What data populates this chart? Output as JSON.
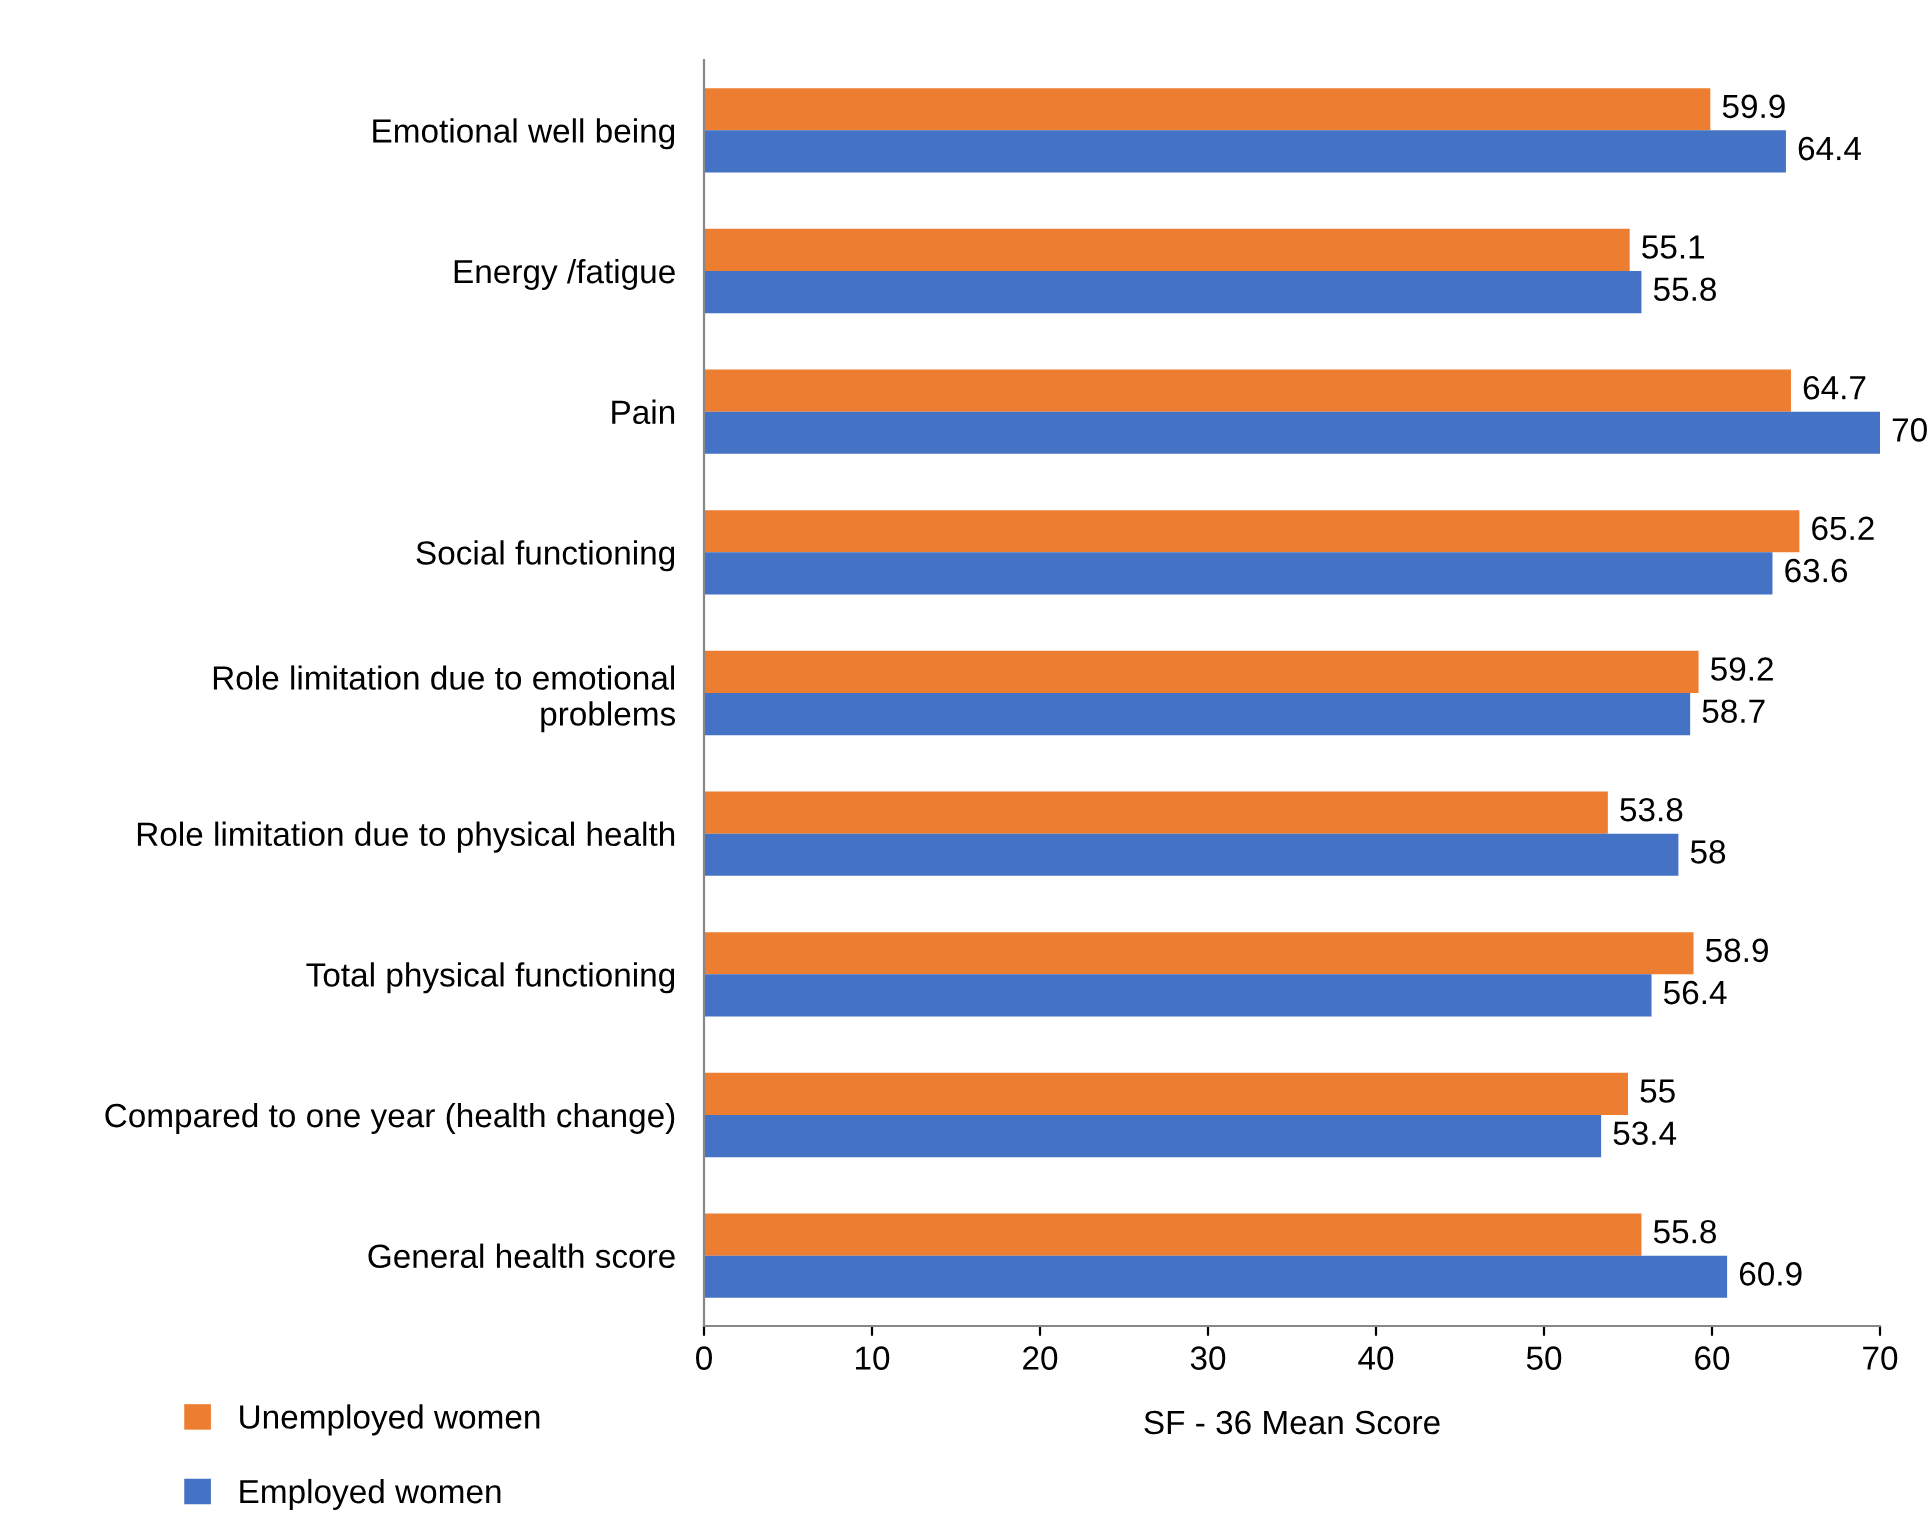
{
  "chart_data": {
    "type": "bar",
    "orientation": "horizontal",
    "xlabel": "SF - 36 Mean Score",
    "categories": [
      "Emotional well being",
      "Energy /fatigue",
      "Pain",
      "Social functioning",
      "Role limitation due to emotional\nproblems",
      "Role limitation due to physical health",
      "Total physical functioning",
      "Compared to one year (health change)",
      "General health score"
    ],
    "series": [
      {
        "name": "Unemployed women",
        "color": "#ed7d31",
        "values": [
          59.9,
          55.1,
          64.7,
          65.2,
          59.2,
          53.8,
          58.9,
          55,
          55.8
        ]
      },
      {
        "name": "Employed women",
        "color": "#4472c4",
        "values": [
          64.4,
          55.8,
          70,
          63.6,
          58.7,
          58,
          56.4,
          53.4,
          60.9
        ]
      }
    ],
    "xlim": [
      0,
      70
    ],
    "xticks": [
      0,
      10,
      20,
      30,
      40,
      50,
      60,
      70
    ],
    "data_labels": true,
    "grid": false,
    "legend": "bottom left"
  }
}
